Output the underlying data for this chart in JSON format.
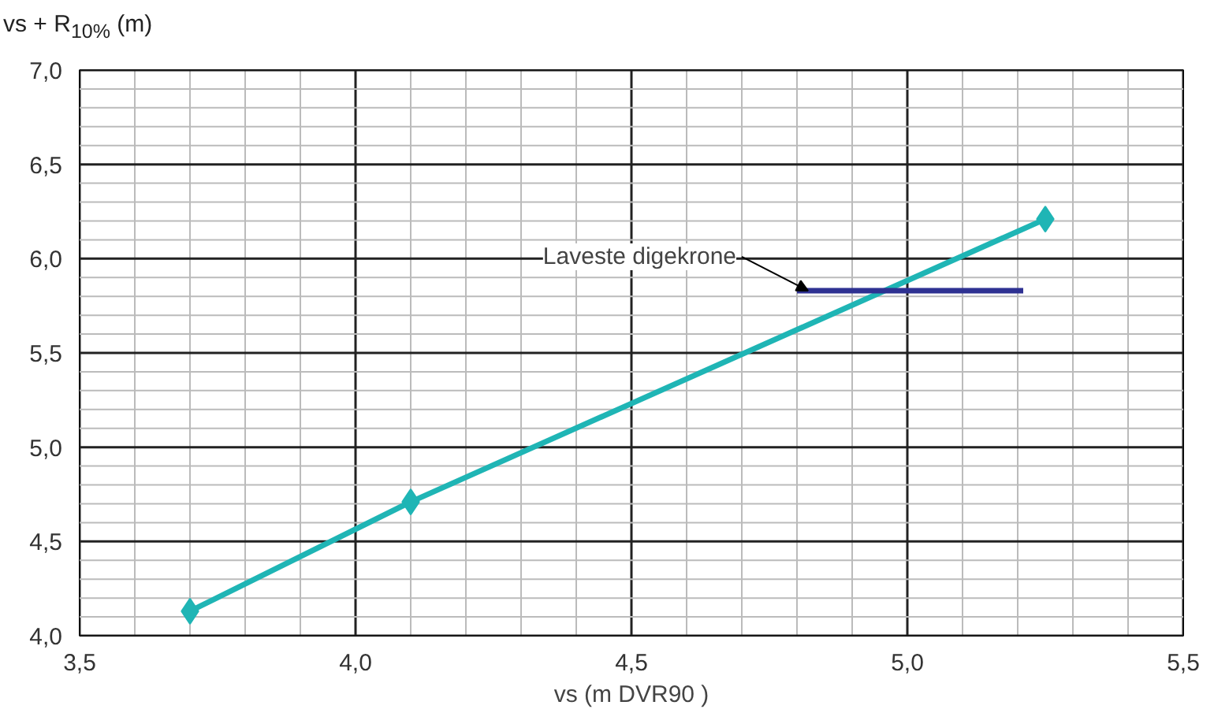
{
  "chart_data": {
    "type": "line",
    "xlabel": "vs (m DVR90 )",
    "ylabel": "vs + R$_{10%}$ (m)",
    "xlim": [
      3.5,
      5.5
    ],
    "ylim": [
      4.0,
      7.0
    ],
    "xticks": [
      {
        "value": 3.5,
        "label": "3,5"
      },
      {
        "value": 3.6,
        "label": null
      },
      {
        "value": 3.7,
        "label": null
      },
      {
        "value": 3.8,
        "label": null
      },
      {
        "value": 3.9,
        "label": null
      },
      {
        "value": 4.0,
        "label": "4,0"
      },
      {
        "value": 4.1,
        "label": null
      },
      {
        "value": 4.2,
        "label": null
      },
      {
        "value": 4.3,
        "label": null
      },
      {
        "value": 4.4,
        "label": null
      },
      {
        "value": 4.5,
        "label": "4,5"
      },
      {
        "value": 4.6,
        "label": null
      },
      {
        "value": 4.7,
        "label": null
      },
      {
        "value": 4.8,
        "label": null
      },
      {
        "value": 4.9,
        "label": null
      },
      {
        "value": 5.0,
        "label": "5,0"
      },
      {
        "value": 5.1,
        "label": null
      },
      {
        "value": 5.2,
        "label": null
      },
      {
        "value": 5.3,
        "label": null
      },
      {
        "value": 5.4,
        "label": null
      },
      {
        "value": 5.5,
        "label": "5,5"
      }
    ],
    "yticks": [
      {
        "value": 4.0,
        "label": "4,0"
      },
      {
        "value": 4.1,
        "label": null
      },
      {
        "value": 4.2,
        "label": null
      },
      {
        "value": 4.3,
        "label": null
      },
      {
        "value": 4.4,
        "label": null
      },
      {
        "value": 4.5,
        "label": "4,5"
      },
      {
        "value": 4.6,
        "label": null
      },
      {
        "value": 4.7,
        "label": null
      },
      {
        "value": 4.8,
        "label": null
      },
      {
        "value": 4.9,
        "label": null
      },
      {
        "value": 5.0,
        "label": "5,0"
      },
      {
        "value": 5.1,
        "label": null
      },
      {
        "value": 5.2,
        "label": null
      },
      {
        "value": 5.3,
        "label": null
      },
      {
        "value": 5.4,
        "label": null
      },
      {
        "value": 5.5,
        "label": "5,5"
      },
      {
        "value": 5.6,
        "label": null
      },
      {
        "value": 5.7,
        "label": null
      },
      {
        "value": 5.8,
        "label": null
      },
      {
        "value": 5.9,
        "label": null
      },
      {
        "value": 6.0,
        "label": "6,0"
      },
      {
        "value": 6.1,
        "label": null
      },
      {
        "value": 6.2,
        "label": null
      },
      {
        "value": 6.3,
        "label": null
      },
      {
        "value": 6.4,
        "label": null
      },
      {
        "value": 6.5,
        "label": "6,5"
      },
      {
        "value": 6.6,
        "label": null
      },
      {
        "value": 6.7,
        "label": null
      },
      {
        "value": 6.8,
        "label": null
      },
      {
        "value": 6.9,
        "label": null
      },
      {
        "value": 7.0,
        "label": "7,0"
      }
    ],
    "grid": true,
    "series": [
      {
        "color": "#1fb5b5",
        "marker": "diamond",
        "x": [
          3.7,
          4.1,
          5.25
        ],
        "values": [
          4.13,
          4.71,
          6.21
        ]
      },
      {
        "color": "#2e3192",
        "marker": "none",
        "x": [
          4.8,
          5.21
        ],
        "values": [
          5.83,
          5.83
        ]
      }
    ],
    "annotations": [
      {
        "text": "Laveste digekrone",
        "x": 4.82,
        "y": 5.83
      }
    ]
  }
}
